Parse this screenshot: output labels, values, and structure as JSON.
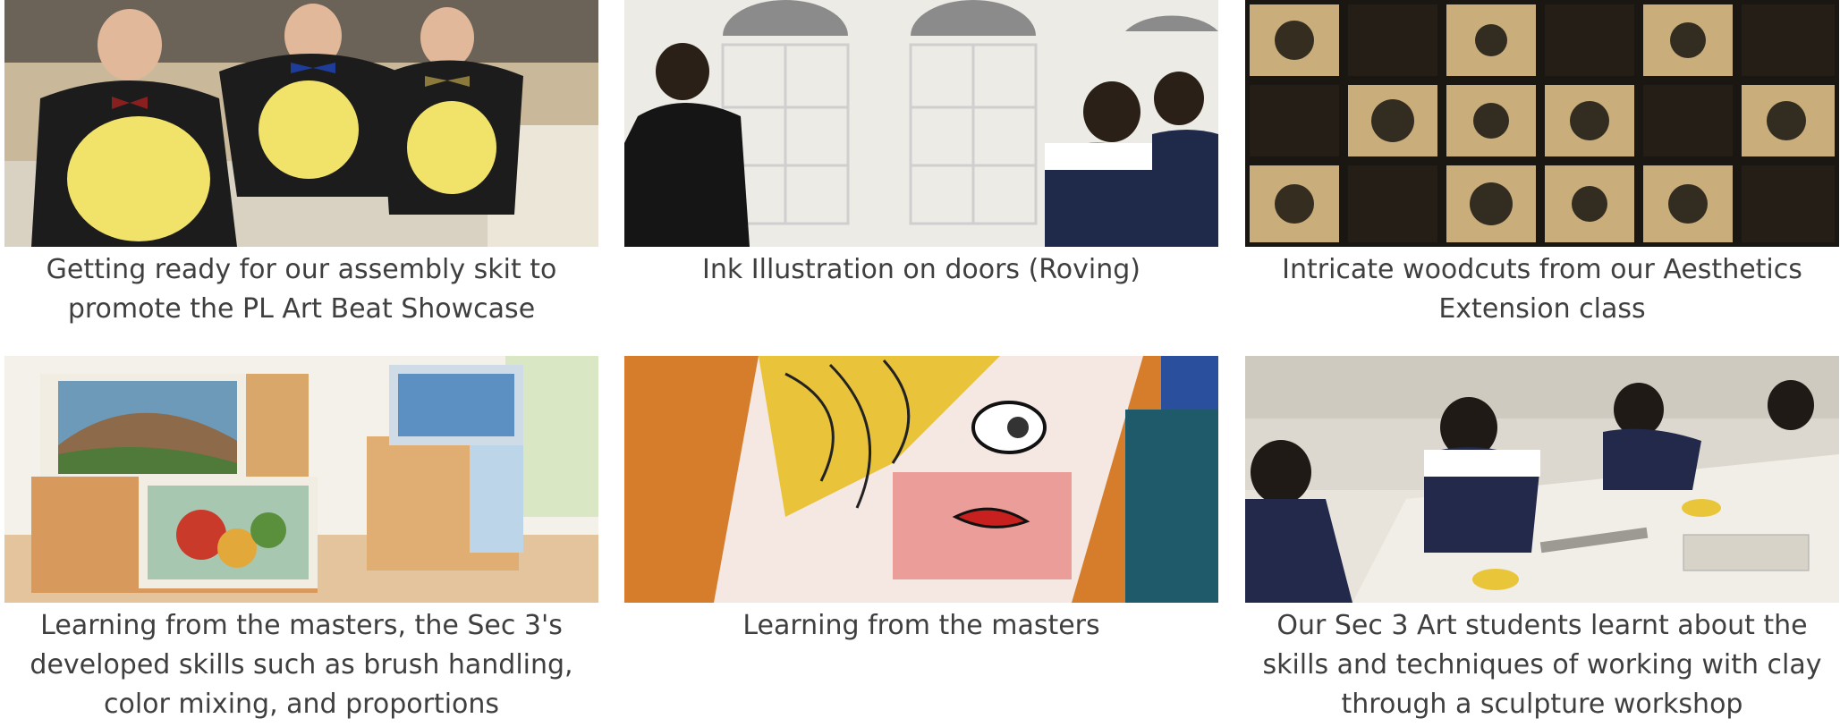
{
  "gallery": {
    "items": [
      {
        "caption": "Getting ready for our assembly skit to promote the PL Art Beat Showcase",
        "image_label": "students in costumes photo"
      },
      {
        "caption": "Ink Illustration on doors (Roving)",
        "image_label": "ink illustration on doors photo"
      },
      {
        "caption": "Intricate woodcuts from our Aesthetics Extension class",
        "image_label": "woodcut prints photo"
      },
      {
        "caption": "Learning from the masters, the Sec 3's developed skills such as brush handling, color mixing, and proportions",
        "image_label": "painted boxes photo"
      },
      {
        "caption": "Learning from the masters",
        "image_label": "pop art painting photo"
      },
      {
        "caption": "Our Sec 3 Art students learnt about the skills and techniques of working with clay through a sculpture workshop",
        "image_label": "clay workshop photo"
      }
    ]
  },
  "colors": {
    "caption_text": "#3f3f3f",
    "background": "#ffffff"
  }
}
